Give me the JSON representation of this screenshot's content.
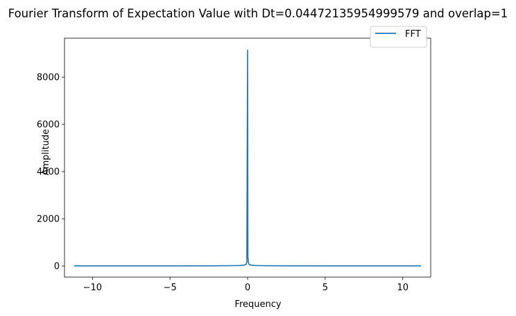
{
  "chart_data": {
    "type": "line",
    "title": "Fourier Transform of Expectation Value with Dt=0.04472135954999579 and overlap=1",
    "xlabel": "Frequency",
    "ylabel": "Amplitude",
    "xlim": [
      -11.8,
      11.8
    ],
    "ylim": [
      -470,
      9650
    ],
    "xticks": [
      -10,
      -5,
      0,
      5,
      10
    ],
    "xtick_labels": [
      "−10",
      "−5",
      "0",
      "5",
      "10"
    ],
    "yticks": [
      0,
      2000,
      4000,
      6000,
      8000
    ],
    "ytick_labels": [
      "0",
      "2000",
      "4000",
      "6000",
      "8000"
    ],
    "grid": false,
    "legend_position": "top-right",
    "series": [
      {
        "name": "FFT",
        "color": "#1f77b4",
        "x": [
          -11.18,
          -5,
          -2,
          -1,
          -0.5,
          -0.2,
          -0.1,
          -0.05,
          0,
          0.02,
          0.05,
          0.1,
          0.2,
          0.5,
          1,
          2,
          5,
          11.18
        ],
        "y": [
          5,
          6,
          10,
          15,
          22,
          40,
          70,
          150,
          9150,
          400,
          150,
          70,
          40,
          22,
          15,
          10,
          6,
          5
        ]
      }
    ]
  }
}
